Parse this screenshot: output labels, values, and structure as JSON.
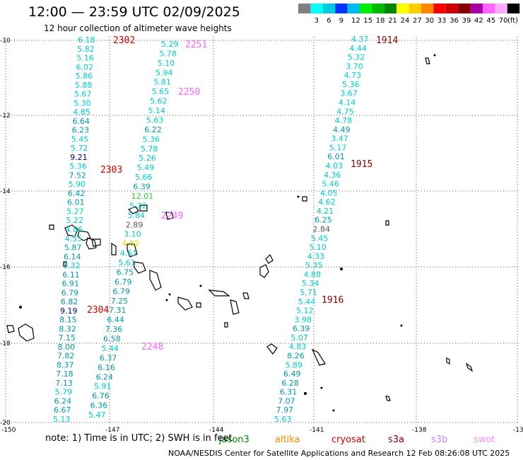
{
  "header": {
    "title": "12:00 — 23:59 UTC 02/09/2025",
    "subtitle": "12 hour collection of altimeter wave heights"
  },
  "colorbar": {
    "unit": "(ft)",
    "bins": [
      {
        "label": "",
        "color": "#808080"
      },
      {
        "label": "3",
        "color": "#00ffff"
      },
      {
        "label": "6",
        "color": "#00ccdd"
      },
      {
        "label": "9",
        "color": "#0033ff"
      },
      {
        "label": "12",
        "color": "#00bbee"
      },
      {
        "label": "15",
        "color": "#00ee00"
      },
      {
        "label": "18",
        "color": "#00bb00"
      },
      {
        "label": "21",
        "color": "#008800"
      },
      {
        "label": "24",
        "color": "#ffff00"
      },
      {
        "label": "27",
        "color": "#ffcc00"
      },
      {
        "label": "30",
        "color": "#ff8800"
      },
      {
        "label": "33",
        "color": "#ff0000"
      },
      {
        "label": "36",
        "color": "#cc0000"
      },
      {
        "label": "39",
        "color": "#880000"
      },
      {
        "label": "42",
        "color": "#aa00aa"
      },
      {
        "label": "45",
        "color": "#ff66ff"
      },
      {
        "label": "70",
        "color": "#ffaaff"
      },
      {
        "label": "",
        "color": "#000000"
      }
    ]
  },
  "axes": {
    "x_ticks": [
      "-150",
      "-147",
      "-144",
      "-141",
      "-138",
      "-13"
    ],
    "y_ticks": [
      "-10",
      "-12",
      "-14",
      "-16",
      "-18",
      "-20"
    ]
  },
  "tracks": [
    {
      "column": "a",
      "values": [
        "6.18",
        "5.82",
        "5.16",
        "6.02",
        "5.86",
        "5.88",
        "5.67",
        "5.30",
        "4.85",
        "6.64",
        "6.23",
        "5.45",
        "5.72",
        "9.21",
        "5.36",
        "7.52",
        "5.90",
        "6.42",
        "6.01",
        "5.27",
        "5.22",
        "4.86",
        "4.55",
        "5.87",
        "6.14",
        "5.32",
        "6.11",
        "6.91",
        "6.79",
        "6.82",
        "9.19",
        "8.15",
        "8.32",
        "7.15",
        "8.00",
        "7.82",
        "8.37",
        "7.18",
        "7.13",
        "5.79",
        "6.24",
        "6.67",
        "5.13"
      ],
      "colors": [
        "c",
        "c",
        "c",
        "c",
        "c",
        "c",
        "c",
        "c",
        "c",
        "m",
        "m",
        "c",
        "c",
        "b",
        "c",
        "m",
        "c",
        "m",
        "m",
        "c",
        "c",
        "c",
        "c",
        "m",
        "m",
        "c",
        "m",
        "m",
        "m",
        "m",
        "b",
        "m",
        "m",
        "m",
        "m",
        "m",
        "m",
        "m",
        "m",
        "c",
        "m",
        "m",
        "c"
      ]
    },
    {
      "column": "b",
      "values": [
        "5.29",
        "5.78",
        "5.10",
        "5.94",
        "5.81",
        "5.65",
        "5.62",
        "5.14",
        "5.63",
        "6.22",
        "5.36",
        "5.78",
        "5.26",
        "5.49",
        "5.66",
        "6.39",
        "12.01",
        "5.32",
        "5.84",
        "2.89",
        "3.10",
        "4.82",
        "4.51",
        "5.61",
        "6.75",
        "6.79",
        "6.79",
        "7.25",
        "7.31",
        "6.44",
        "7.36",
        "6.58",
        "5.44",
        "6.37",
        "6.16",
        "6.24",
        "5.91",
        "6.76",
        "6.36",
        "5.47"
      ],
      "colors": [
        "c",
        "c",
        "c",
        "c",
        "c",
        "c",
        "c",
        "c",
        "c",
        "m",
        "c",
        "c",
        "c",
        "c",
        "c",
        "m",
        "g",
        "c",
        "c",
        "gy",
        "c",
        "y",
        "c",
        "c",
        "m",
        "m",
        "m",
        "m",
        "m",
        "m",
        "m",
        "m",
        "c",
        "m",
        "m",
        "m",
        "c",
        "m",
        "m",
        "c"
      ]
    },
    {
      "column": "c",
      "values": [
        "4.37",
        "4.44",
        "5.32",
        "3.70",
        "4.73",
        "5.36",
        "3.67",
        "4.14",
        "4.75",
        "4.78",
        "4.49",
        "3.47",
        "5.17",
        "6.01",
        "4.03",
        "4.36",
        "5.46",
        "4.05",
        "4.62",
        "4.21",
        "6.25",
        "2.84",
        "5.45",
        "5.10",
        "4.33",
        "5.35",
        "4.88",
        "5.34",
        "5.71",
        "5.44",
        "5.12",
        "3.98",
        "6.39",
        "5.07",
        "4.83",
        "8.26",
        "5.89",
        "6.49",
        "6.28",
        "6.31",
        "7.07",
        "7.97",
        "5.63"
      ],
      "colors": [
        "c",
        "c",
        "c",
        "c",
        "c",
        "c",
        "c",
        "c",
        "c",
        "c",
        "m",
        "c",
        "c",
        "m",
        "c",
        "c",
        "c",
        "c",
        "c",
        "c",
        "m",
        "gy",
        "c",
        "c",
        "c",
        "c",
        "c",
        "c",
        "c",
        "c",
        "c",
        "c",
        "m",
        "c",
        "c",
        "m",
        "c",
        "m",
        "m",
        "m",
        "m",
        "m",
        "c"
      ]
    }
  ],
  "pass_labels": [
    {
      "text": "2302",
      "color": "#cc0000"
    },
    {
      "text": "2303",
      "color": "#cc0000"
    },
    {
      "text": "2304",
      "color": "#cc0000"
    },
    {
      "text": "2251",
      "color": "#ff66ff"
    },
    {
      "text": "2250",
      "color": "#ff66ff"
    },
    {
      "text": "2249",
      "color": "#ff66ff"
    },
    {
      "text": "2248",
      "color": "#ff66ff"
    },
    {
      "text": "1914",
      "color": "#880000"
    },
    {
      "text": "1915",
      "color": "#880000"
    },
    {
      "text": "1916",
      "color": "#880000"
    }
  ],
  "legend": {
    "note": "note:  1) Time is in UTC;  2) SWH is in feet",
    "satellites": [
      {
        "name": "jason3",
        "color": "#008800"
      },
      {
        "name": "altika",
        "color": "#ff8800"
      },
      {
        "name": "cryosat",
        "color": "#cc0000"
      },
      {
        "name": "s3a",
        "color": "#880000"
      },
      {
        "name": "s3b",
        "color": "#bb88ff"
      },
      {
        "name": "swot",
        "color": "#ff88ff"
      }
    ]
  },
  "credit": "NOAA/NESDIS Center for Satellite Applications and Research    12 Feb 08:26:08 UTC 2025"
}
